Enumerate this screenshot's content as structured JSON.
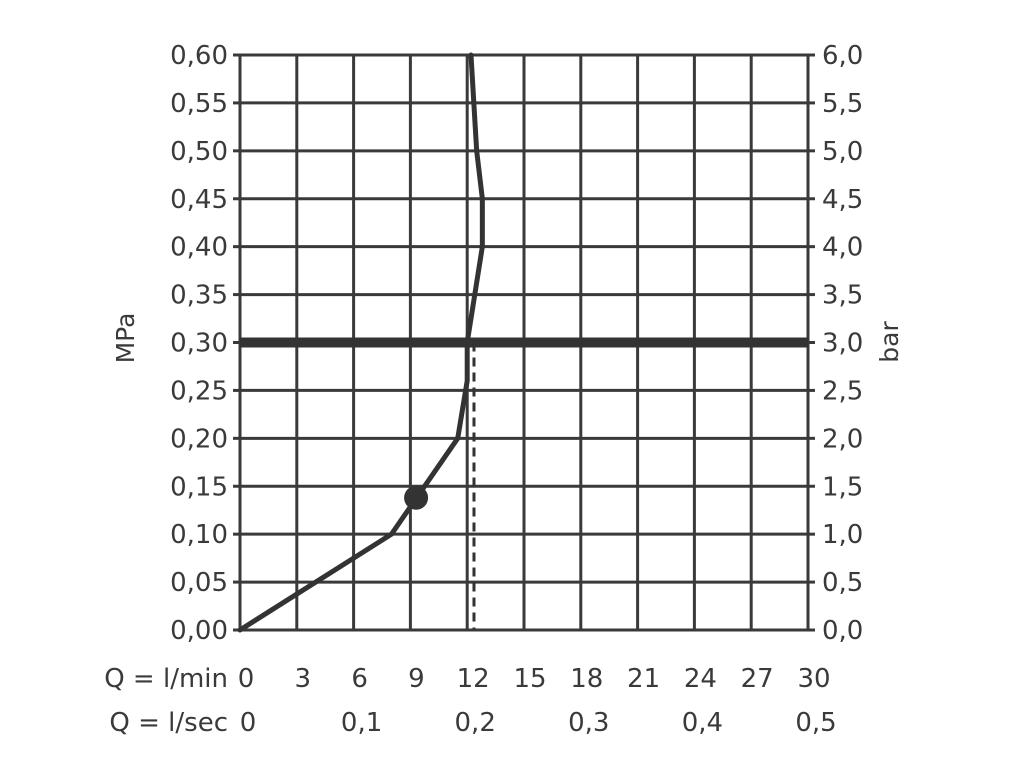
{
  "chart_data": {
    "type": "line",
    "y_left": {
      "label": "MPa",
      "ticks": [
        "0,00",
        "0,05",
        "0,10",
        "0,15",
        "0,20",
        "0,25",
        "0,30",
        "0,35",
        "0,40",
        "0,45",
        "0,50",
        "0,55",
        "0,60"
      ],
      "range": [
        0,
        0.6
      ]
    },
    "y_right": {
      "label": "bar",
      "ticks": [
        "0,0",
        "0,5",
        "1,0",
        "1,5",
        "2,0",
        "2,5",
        "3,0",
        "3,5",
        "4,0",
        "4,5",
        "5,0",
        "5,5",
        "6,0"
      ],
      "range": [
        0,
        6
      ]
    },
    "x_primary": {
      "label": "Q = l/min",
      "ticks": [
        "0",
        "3",
        "6",
        "9",
        "12",
        "15",
        "18",
        "21",
        "24",
        "27",
        "30"
      ],
      "range": [
        0,
        30
      ]
    },
    "x_secondary": {
      "label": "Q = l/sec",
      "ticks": [
        "0",
        "0,1",
        "0,2",
        "0,3",
        "0,4",
        "0,5"
      ]
    },
    "grid": true,
    "series": [
      {
        "x": [
          0,
          8,
          11.5,
          12,
          12,
          12.8,
          12.8,
          12.5,
          12.2
        ],
        "y": [
          0,
          0.1,
          0.2,
          0.26,
          0.3,
          0.4,
          0.45,
          0.5,
          0.6
        ],
        "color": "#333333"
      }
    ],
    "reference_line": {
      "y": 0.3,
      "color": "#333333"
    },
    "marker": {
      "x": 9.3,
      "y": 0.138,
      "color": "#333333"
    },
    "drop_line": {
      "x": 12.2,
      "y_from": 0,
      "y_to": 0.3
    }
  }
}
